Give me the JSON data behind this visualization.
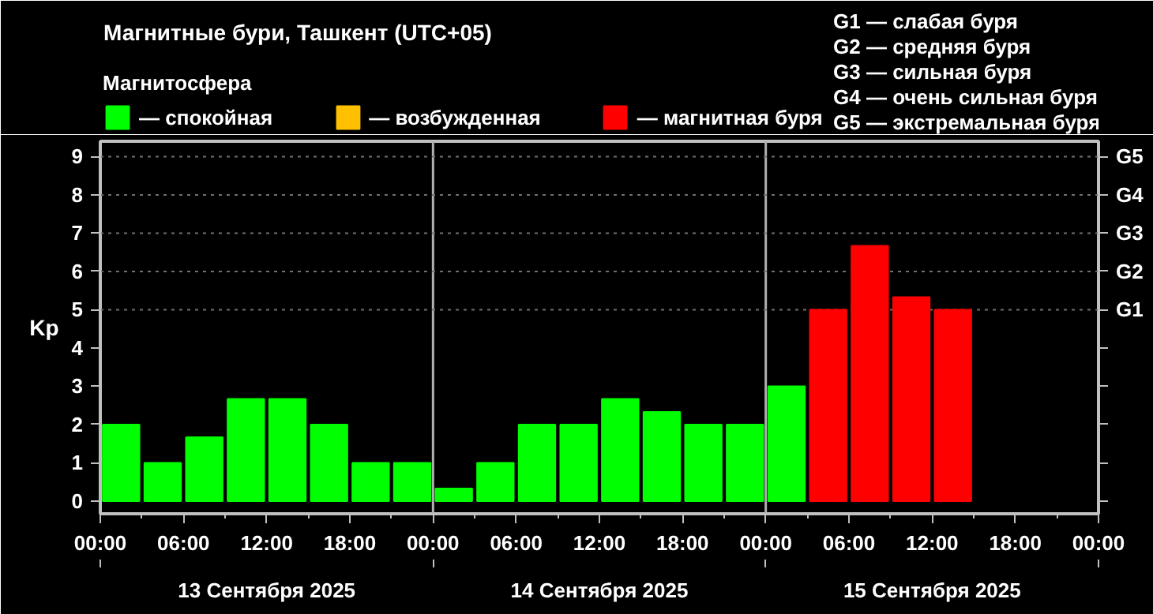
{
  "chart_data": {
    "type": "bar",
    "title": "Магнитные бури, Ташкент (UTC+05)",
    "ylabel": "Kp",
    "legend_title": "Магнитосфера",
    "x": [
      "2025-09-13T01:30",
      "2025-09-13T04:30",
      "2025-09-13T07:30",
      "2025-09-13T10:30",
      "2025-09-13T13:30",
      "2025-09-13T16:30",
      "2025-09-13T19:30",
      "2025-09-13T22:30",
      "2025-09-14T01:30",
      "2025-09-14T04:30",
      "2025-09-14T07:30",
      "2025-09-14T10:30",
      "2025-09-14T13:30",
      "2025-09-14T16:30",
      "2025-09-14T19:30",
      "2025-09-14T22:30",
      "2025-09-15T01:30",
      "2025-09-15T04:30",
      "2025-09-15T07:30",
      "2025-09-15T10:30",
      "2025-09-15T13:30"
    ],
    "series": [
      {
        "name": "— спокойная",
        "color": "#00ff00",
        "values": [
          2,
          1,
          1.67,
          2.67,
          2.67,
          2,
          1,
          1,
          0.33,
          1,
          2,
          2,
          2.67,
          2.33,
          2,
          2,
          3,
          null,
          null,
          null,
          null
        ]
      },
      {
        "name": "— возбужденная",
        "color": "#ffc000",
        "values": [
          null,
          null,
          null,
          null,
          null,
          null,
          null,
          null,
          null,
          null,
          null,
          null,
          null,
          null,
          null,
          null,
          null,
          null,
          null,
          null,
          null
        ]
      },
      {
        "name": "— магнитная буря",
        "color": "#ff0000",
        "values": [
          null,
          null,
          null,
          null,
          null,
          null,
          null,
          null,
          null,
          null,
          null,
          null,
          null,
          null,
          null,
          null,
          null,
          5,
          6.67,
          5.33,
          5
        ]
      }
    ],
    "xlim": [
      "2025-09-13T00:00",
      "2025-09-16T00:00"
    ],
    "xticks": [
      {
        "value": "2025-09-13T00:00",
        "label": "00:00"
      },
      {
        "value": "2025-09-13T06:00",
        "label": "06:00"
      },
      {
        "value": "2025-09-13T12:00",
        "label": "12:00"
      },
      {
        "value": "2025-09-13T18:00",
        "label": "18:00"
      },
      {
        "value": "2025-09-14T00:00",
        "label": "00:00"
      },
      {
        "value": "2025-09-14T06:00",
        "label": "06:00"
      },
      {
        "value": "2025-09-14T12:00",
        "label": "12:00"
      },
      {
        "value": "2025-09-14T18:00",
        "label": "18:00"
      },
      {
        "value": "2025-09-15T00:00",
        "label": "00:00"
      },
      {
        "value": "2025-09-15T06:00",
        "label": "06:00"
      },
      {
        "value": "2025-09-15T12:00",
        "label": "12:00"
      },
      {
        "value": "2025-09-15T18:00",
        "label": "18:00"
      },
      {
        "value": "2025-09-16T00:00",
        "label": "00:00"
      }
    ],
    "ylim": [
      -0.33,
      9.4
    ],
    "yticks": [
      0,
      1,
      2,
      3,
      4,
      5,
      6,
      7,
      8,
      9
    ],
    "ref_lines": [
      {
        "axis": "x",
        "value": "2025-09-14T00:00",
        "color": "#b0b0b0",
        "line_style": "solid"
      },
      {
        "axis": "x",
        "value": "2025-09-15T00:00",
        "color": "#b0b0b0",
        "line_style": "solid"
      },
      {
        "axis": "y",
        "value": 5,
        "label": "G1",
        "color": "#707070",
        "line_style": "dotted"
      },
      {
        "axis": "y",
        "value": 6,
        "label": "G2",
        "color": "#707070",
        "line_style": "dotted"
      },
      {
        "axis": "y",
        "value": 7,
        "label": "G3",
        "color": "#707070",
        "line_style": "dotted"
      },
      {
        "axis": "y",
        "value": 8,
        "label": "G4",
        "color": "#707070",
        "line_style": "dotted"
      },
      {
        "axis": "y",
        "value": 9,
        "label": "G5",
        "color": "#707070",
        "line_style": "dotted"
      }
    ],
    "annotations": [
      "13 Сентября 2025",
      "14 Сентября 2025",
      "15 Сентября 2025",
      "G1 — слабая буря",
      "G2 — средняя буря",
      "G3 — сильная буря",
      "G4 — очень сильная буря",
      "G5 — экстремальная буря"
    ],
    "legend": "top left"
  }
}
